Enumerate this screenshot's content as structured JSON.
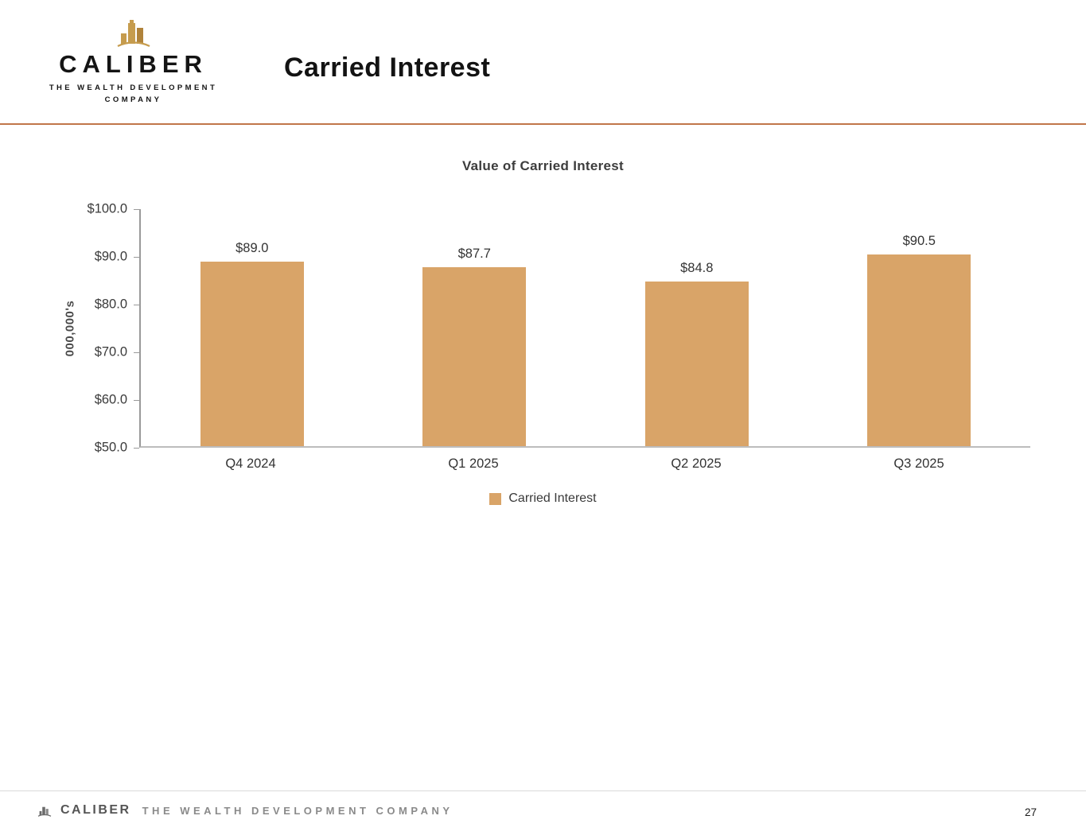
{
  "header": {
    "title": "Carried Interest",
    "logo": {
      "icon": "building-skyline-icon",
      "brand": "CALIBER",
      "tagline_line1": "THE WEALTH DEVELOPMENT",
      "tagline_line2": "COMPANY"
    }
  },
  "chart_data": {
    "type": "bar",
    "title": "Value of Carried Interest",
    "categories": [
      "Q4 2024",
      "Q1 2025",
      "Q2 2025",
      "Q3 2025"
    ],
    "series": [
      {
        "name": "Carried Interest",
        "values": [
          89.0,
          87.7,
          84.8,
          90.5
        ]
      }
    ],
    "data_labels": [
      "$89.0",
      "$87.7",
      "$84.8",
      "$90.5"
    ],
    "xlabel": "",
    "ylabel": "000,000's",
    "ylim": [
      50,
      100
    ],
    "ytick_step": 10,
    "ytick_labels_top_to_bottom": [
      "$100.0",
      "$90.0",
      "$80.0",
      "$70.0",
      "$60.0",
      "$50.0"
    ],
    "grid": false,
    "legend_position": "bottom",
    "bar_color": "#D9A468"
  },
  "footer": {
    "icon": "building-skyline-icon",
    "brand": "CALIBER",
    "tagline": "THE WEALTH DEVELOPMENT COMPANY",
    "page_number": "27"
  },
  "colors": {
    "accent_rule": "#C1764A",
    "bar": "#D9A468",
    "gold_logo": "#C69C4E"
  }
}
